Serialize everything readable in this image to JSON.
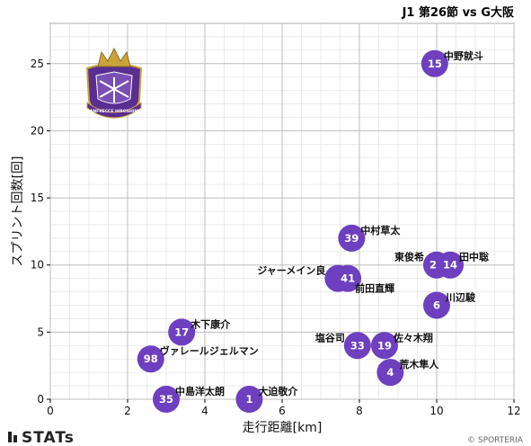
{
  "chart_data": {
    "type": "scatter",
    "title": "J1 第26節 vs G大阪",
    "xlabel": "走行距離[km]",
    "ylabel": "スプリント回数[回]",
    "xlim": [
      0,
      12
    ],
    "ylim": [
      0,
      28
    ],
    "xticks": [
      0,
      2,
      4,
      6,
      8,
      10,
      12
    ],
    "yticks": [
      0,
      5,
      10,
      15,
      20,
      25
    ],
    "grid": true,
    "point_color": "#6e3fbf",
    "points": [
      {
        "number": "15",
        "name": "中野就斗",
        "x": 9.95,
        "y": 25,
        "label_side": "right"
      },
      {
        "number": "39",
        "name": "中村草太",
        "x": 7.8,
        "y": 12,
        "label_side": "right"
      },
      {
        "number": "24",
        "name": "東俊希",
        "x": 10.0,
        "y": 10,
        "label_side": "left"
      },
      {
        "number": "14",
        "name": "田中聡",
        "x": 10.35,
        "y": 10,
        "label_side": "right"
      },
      {
        "number": "9",
        "name": "ジャーメイン良",
        "x": 7.45,
        "y": 9,
        "label_side": "left"
      },
      {
        "number": "41",
        "name": "前田直輝",
        "x": 7.7,
        "y": 9,
        "label_side": "below-right"
      },
      {
        "number": "6",
        "name": "川辺駿",
        "x": 10.0,
        "y": 7,
        "label_side": "right"
      },
      {
        "number": "17",
        "name": "木下康介",
        "x": 3.4,
        "y": 5,
        "label_side": "right"
      },
      {
        "number": "33",
        "name": "塩谷司",
        "x": 7.95,
        "y": 4,
        "label_side": "left"
      },
      {
        "number": "19",
        "name": "佐々木翔",
        "x": 8.65,
        "y": 4,
        "label_side": "right"
      },
      {
        "number": "4",
        "name": "荒木隼人",
        "x": 8.8,
        "y": 2,
        "label_side": "right"
      },
      {
        "number": "98",
        "name": "ヴァレールジェルマン",
        "x": 2.6,
        "y": 3,
        "label_side": "right"
      },
      {
        "number": "35",
        "name": "中島洋太朗",
        "x": 3.0,
        "y": 0,
        "label_side": "right"
      },
      {
        "number": "1",
        "name": "大迫敬介",
        "x": 5.15,
        "y": 0,
        "label_side": "right"
      }
    ]
  },
  "logo": {
    "text": "SANFRECCE HIROSHIMA",
    "color": "#5a2d91",
    "accent": "#c9a43b"
  },
  "footer": {
    "brand": "STATs",
    "copyright": "© SPORTERIA"
  }
}
